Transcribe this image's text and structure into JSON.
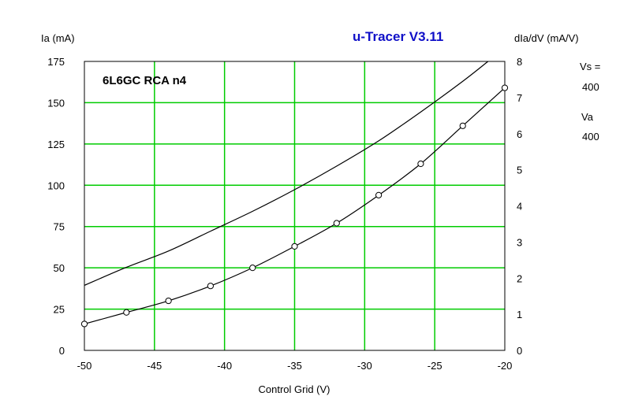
{
  "app_title": "u-Tracer V3.11",
  "side_panel": {
    "vs_label": "Vs =",
    "vs_value": "400",
    "va_label": "Va",
    "va_value": "400"
  },
  "colors": {
    "grid": "#00cc00",
    "frame": "#000000",
    "curve": "#000000",
    "title": "#1010c8"
  },
  "chart_data": {
    "type": "line",
    "title": "6L6GC RCA n4",
    "xlabel": "Control Grid (V)",
    "ylabel": "Ia (mA)",
    "y2label": "dIa/dV (mA/V)",
    "xlim": [
      -50,
      -20
    ],
    "ylim": [
      0,
      175
    ],
    "y2lim": [
      0,
      8
    ],
    "x_ticks": [
      -50,
      -45,
      -40,
      -35,
      -30,
      -25,
      -20
    ],
    "y_ticks": [
      0,
      25,
      50,
      75,
      100,
      125,
      150,
      175
    ],
    "y2_ticks": [
      0,
      1,
      2,
      3,
      4,
      5,
      6,
      7,
      8
    ],
    "grid": true,
    "series": [
      {
        "axis": "left",
        "markers": true,
        "x": [
          -50,
          -47,
          -44,
          -41,
          -38,
          -35,
          -32,
          -29,
          -26,
          -23,
          -20
        ],
        "y": [
          16,
          23,
          30,
          39,
          50,
          63,
          77,
          94,
          113,
          136,
          159
        ]
      },
      {
        "axis": "right",
        "markers": false,
        "x": [
          -50,
          -47,
          -44,
          -41,
          -38,
          -35,
          -32,
          -29,
          -26,
          -23,
          -21.2
        ],
        "y": [
          1.8,
          2.3,
          2.75,
          3.3,
          3.85,
          4.45,
          5.1,
          5.8,
          6.6,
          7.45,
          8.0
        ]
      }
    ]
  }
}
